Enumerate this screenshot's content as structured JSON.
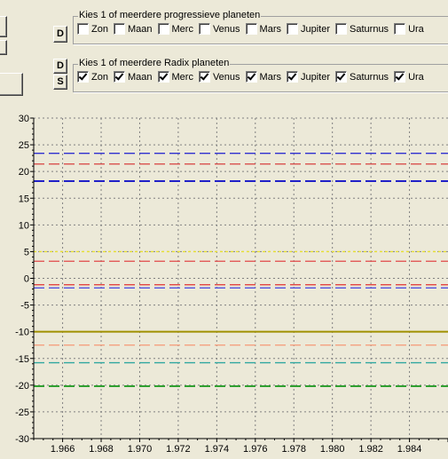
{
  "controls": {
    "d_label": "D",
    "s_label": "S",
    "progressive": {
      "title": "Kies 1 of meerdere progressieve planeten",
      "items": [
        {
          "label": "Zon",
          "checked": false
        },
        {
          "label": "Maan",
          "checked": false
        },
        {
          "label": "Merc",
          "checked": false
        },
        {
          "label": "Venus",
          "checked": false
        },
        {
          "label": "Mars",
          "checked": false
        },
        {
          "label": "Jupiter",
          "checked": false
        },
        {
          "label": "Saturnus",
          "checked": false
        },
        {
          "label": "Ura",
          "checked": false
        }
      ]
    },
    "radix": {
      "title": "Kies 1 of meerdere Radix planeten",
      "items": [
        {
          "label": "Zon",
          "checked": true
        },
        {
          "label": "Maan",
          "checked": true
        },
        {
          "label": "Merc",
          "checked": true
        },
        {
          "label": "Venus",
          "checked": true
        },
        {
          "label": "Mars",
          "checked": true
        },
        {
          "label": "Jupiter",
          "checked": true
        },
        {
          "label": "Saturnus",
          "checked": true
        },
        {
          "label": "Ura",
          "checked": true
        }
      ]
    }
  },
  "chart_data": {
    "type": "line",
    "title": "",
    "xlabel": "",
    "ylabel": "",
    "ylim": [
      -30,
      30
    ],
    "xlim": [
      1.9645,
      1.986
    ],
    "yticks": [
      "30",
      "25",
      "20",
      "15",
      "10",
      "5",
      "0",
      "-5",
      "-10",
      "-15",
      "-20",
      "-25",
      "-30"
    ],
    "xticks": [
      "1.966",
      "1.968",
      "1.970",
      "1.972",
      "1.974",
      "1.976",
      "1.978",
      "1.980",
      "1.982",
      "1.984"
    ],
    "grid": true,
    "background": "#ece9d8",
    "series": [
      {
        "value": 23.4,
        "color": "#3030d0",
        "style": "dash"
      },
      {
        "value": 21.4,
        "color": "#d84040",
        "style": "dash"
      },
      {
        "value": 18.2,
        "color": "#2020c8",
        "style": "dash-thick"
      },
      {
        "value": 5.0,
        "color": "#e8e030",
        "style": "dot"
      },
      {
        "value": 3.2,
        "color": "#e04848",
        "style": "dash"
      },
      {
        "value": -1.2,
        "color": "#e03030",
        "style": "dash"
      },
      {
        "value": -1.8,
        "color": "#5050e0",
        "style": "dash"
      },
      {
        "value": -10.0,
        "color": "#a09000",
        "style": "solid"
      },
      {
        "value": -12.5,
        "color": "#f4a080",
        "style": "dash"
      },
      {
        "value": -15.8,
        "color": "#30a8a0",
        "style": "dash"
      },
      {
        "value": -20.2,
        "color": "#30a030",
        "style": "dash-thick"
      }
    ]
  }
}
